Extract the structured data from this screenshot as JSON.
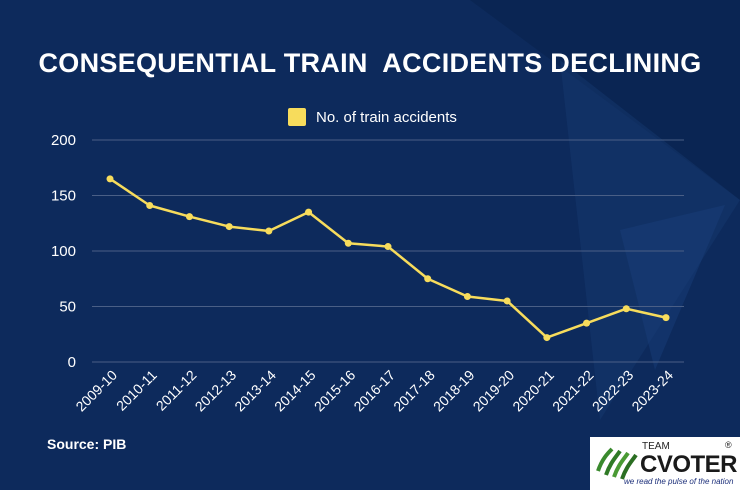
{
  "title": "CONSEQUENTIAL TRAIN  ACCIDENTS DECLINING",
  "source": "Source: PIB",
  "logo": {
    "team": "TEAM",
    "name": "CVOTER",
    "reg": "®",
    "tagline": "we read the pulse of the nation"
  },
  "colors": {
    "background": "#0d2a5c",
    "line": "#f7dc5c",
    "text": "#ffffff",
    "grid": "#4a5f86"
  },
  "chart_data": {
    "type": "line",
    "categories": [
      "2009-10",
      "2010-11",
      "2011-12",
      "2012-13",
      "2013-14",
      "2014-15",
      "2015-16",
      "2016-17",
      "2017-18",
      "2018-19",
      "2019-20",
      "2020-21",
      "2021-22",
      "2022-23",
      "2023-24"
    ],
    "series": [
      {
        "name": "No. of train accidents",
        "values": [
          165,
          141,
          131,
          122,
          118,
          135,
          107,
          104,
          75,
          59,
          55,
          22,
          35,
          48,
          40
        ]
      }
    ],
    "yticks": [
      0,
      50,
      100,
      150,
      200
    ],
    "ylim": [
      0,
      200
    ],
    "grid": true,
    "legend_position": "top-center"
  }
}
